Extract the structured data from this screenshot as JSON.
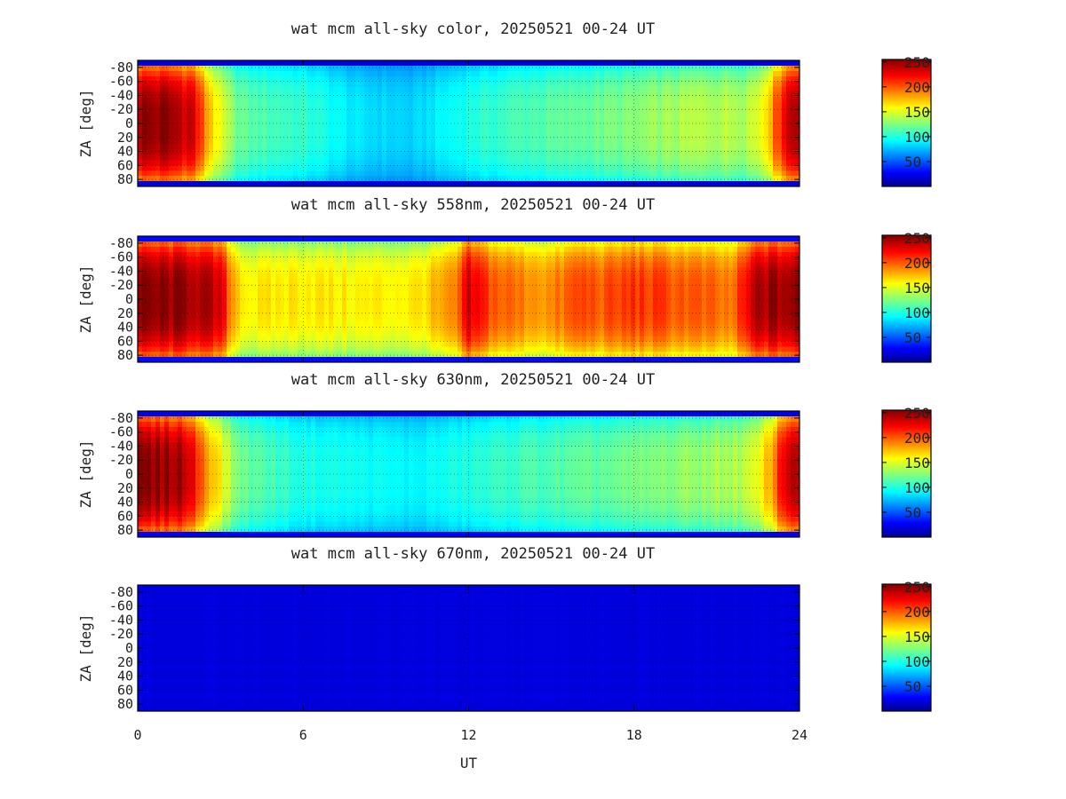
{
  "chart_data": [
    {
      "type": "heatmap",
      "title": "wat mcm all-sky color, 20250521 00-24 UT",
      "xlabel": "",
      "ylabel": "ZA [deg]",
      "xlim": [
        0,
        24
      ],
      "ylim": [
        -90,
        90
      ],
      "x_ticks": [
        "0",
        "6",
        "12",
        "18",
        "24"
      ],
      "y_ticks": [
        "-80",
        "-60",
        "-40",
        "-20",
        "0",
        "20",
        "40",
        "60",
        "80"
      ],
      "grid": true,
      "colorbar": {
        "min": 0,
        "max": 255,
        "ticks": [
          "50",
          "100",
          "150",
          "200",
          "250"
        ],
        "colormap": "jet"
      },
      "time_ut": [
        0,
        1,
        2,
        2.5,
        3,
        3.5,
        4,
        6,
        8,
        10,
        12,
        14,
        16,
        18,
        20,
        22,
        22.5,
        23,
        23.5,
        24
      ],
      "zenith_center_values": [
        250,
        250,
        235,
        185,
        150,
        125,
        115,
        105,
        85,
        80,
        100,
        112,
        118,
        126,
        138,
        140,
        150,
        185,
        235,
        250
      ],
      "limb_value": 20
    },
    {
      "type": "heatmap",
      "title": "wat mcm all-sky 558nm, 20250521 00-24 UT",
      "xlabel": "",
      "ylabel": "ZA [deg]",
      "xlim": [
        0,
        24
      ],
      "ylim": [
        -90,
        90
      ],
      "x_ticks": [
        "0",
        "6",
        "12",
        "18",
        "24"
      ],
      "y_ticks": [
        "-80",
        "-60",
        "-40",
        "-20",
        "0",
        "20",
        "40",
        "60",
        "80"
      ],
      "grid": true,
      "colorbar": {
        "min": 0,
        "max": 255,
        "ticks": [
          "50",
          "100",
          "150",
          "200",
          "250"
        ],
        "colormap": "jet"
      },
      "time_ut": [
        0,
        2,
        3,
        3.5,
        4,
        6,
        8,
        10,
        11.5,
        12,
        13,
        14,
        15,
        16,
        17,
        18,
        20,
        21.5,
        22,
        22.5,
        24
      ],
      "zenith_center_values": [
        250,
        250,
        230,
        180,
        160,
        165,
        160,
        162,
        185,
        230,
        200,
        190,
        185,
        205,
        200,
        210,
        200,
        190,
        215,
        245,
        250
      ],
      "limb_value": 30
    },
    {
      "type": "heatmap",
      "title": "wat mcm all-sky 630nm, 20250521 00-24 UT",
      "xlabel": "",
      "ylabel": "ZA [deg]",
      "xlim": [
        0,
        24
      ],
      "ylim": [
        -90,
        90
      ],
      "x_ticks": [
        "0",
        "6",
        "12",
        "18",
        "24"
      ],
      "y_ticks": [
        "-80",
        "-60",
        "-40",
        "-20",
        "0",
        "20",
        "40",
        "60",
        "80"
      ],
      "grid": true,
      "colorbar": {
        "min": 0,
        "max": 255,
        "ticks": [
          "50",
          "100",
          "150",
          "200",
          "250"
        ],
        "colormap": "jet"
      },
      "time_ut": [
        0,
        1.5,
        2,
        2.5,
        3,
        3.5,
        4,
        6,
        8,
        10,
        12,
        14,
        16,
        18,
        20,
        22,
        22.5,
        23,
        23.5,
        24
      ],
      "zenith_center_values": [
        250,
        250,
        225,
        190,
        160,
        130,
        118,
        100,
        95,
        90,
        100,
        110,
        115,
        122,
        130,
        140,
        150,
        185,
        235,
        250
      ],
      "limb_value": 25
    },
    {
      "type": "heatmap",
      "title": "wat mcm all-sky 670nm, 20250521 00-24 UT",
      "xlabel": "UT",
      "ylabel": "ZA [deg]",
      "xlim": [
        0,
        24
      ],
      "ylim": [
        -90,
        90
      ],
      "x_ticks": [
        "0",
        "6",
        "12",
        "18",
        "24"
      ],
      "y_ticks": [
        "-80",
        "-60",
        "-40",
        "-20",
        "0",
        "20",
        "40",
        "60",
        "80"
      ],
      "grid": true,
      "colorbar": {
        "min": 0,
        "max": 255,
        "ticks": [
          "50",
          "100",
          "150",
          "200",
          "250"
        ],
        "colormap": "jet"
      },
      "time_ut": [
        0,
        24
      ],
      "zenith_center_values": [
        20,
        20
      ],
      "limb_value": 20
    }
  ]
}
